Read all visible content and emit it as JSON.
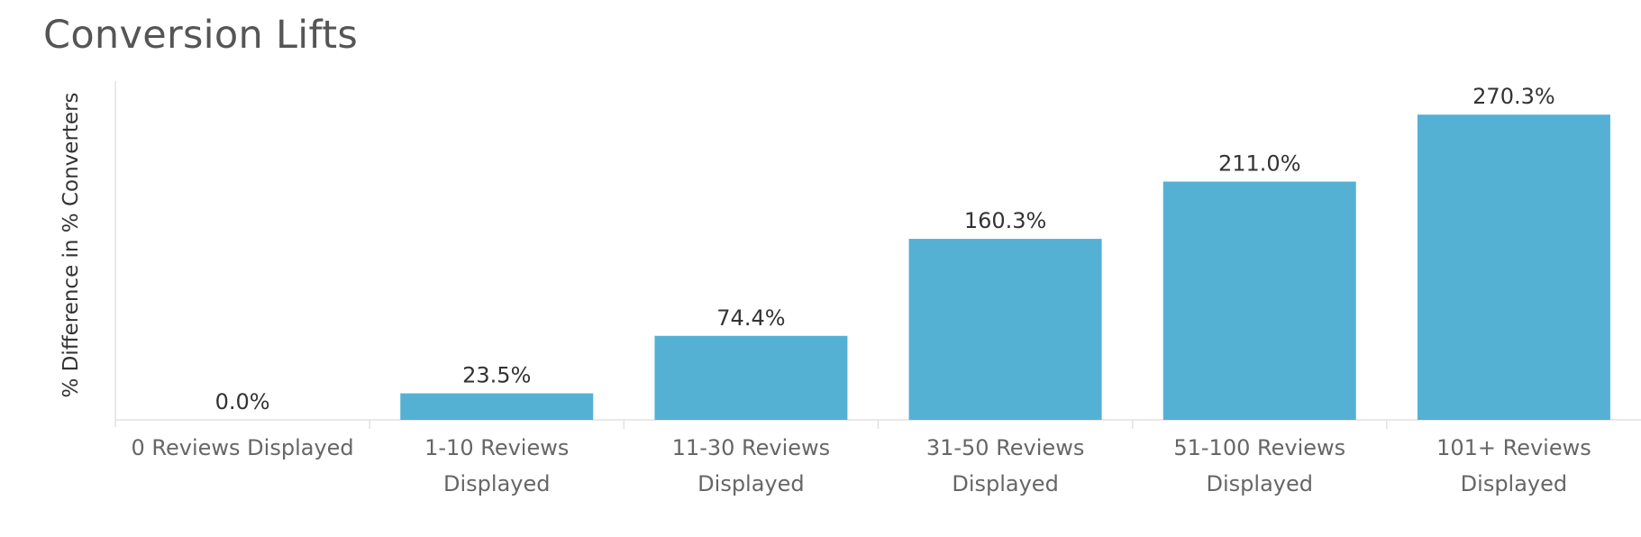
{
  "chart_data": {
    "type": "bar",
    "title": "Conversion Lifts",
    "ylabel": "% Difference in % Converters",
    "xlabel": "",
    "categories": [
      [
        "0 Reviews Displayed"
      ],
      [
        "1-10 Reviews",
        "Displayed"
      ],
      [
        "11-30 Reviews",
        "Displayed"
      ],
      [
        "31-50 Reviews",
        "Displayed"
      ],
      [
        "51-100 Reviews",
        "Displayed"
      ],
      [
        "101+ Reviews",
        "Displayed"
      ]
    ],
    "values": [
      0.0,
      23.5,
      74.4,
      160.3,
      211.0,
      270.3
    ],
    "value_labels": [
      "0.0%",
      "23.5%",
      "74.4%",
      "160.3%",
      "211.0%",
      "270.3%"
    ],
    "ylim": [
      0,
      300
    ],
    "grid": false,
    "bar_color": "#55b1d4"
  }
}
